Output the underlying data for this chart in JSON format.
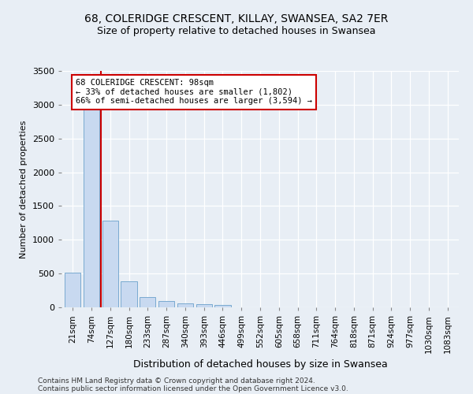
{
  "title1": "68, COLERIDGE CRESCENT, KILLAY, SWANSEA, SA2 7ER",
  "title2": "Size of property relative to detached houses in Swansea",
  "xlabel": "Distribution of detached houses by size in Swansea",
  "ylabel": "Number of detached properties",
  "categories": [
    "21sqm",
    "74sqm",
    "127sqm",
    "180sqm",
    "233sqm",
    "287sqm",
    "340sqm",
    "393sqm",
    "446sqm",
    "499sqm",
    "552sqm",
    "605sqm",
    "658sqm",
    "711sqm",
    "764sqm",
    "818sqm",
    "871sqm",
    "924sqm",
    "977sqm",
    "1030sqm",
    "1083sqm"
  ],
  "values": [
    510,
    3280,
    1280,
    390,
    155,
    90,
    60,
    45,
    35,
    0,
    0,
    0,
    0,
    0,
    0,
    0,
    0,
    0,
    0,
    0,
    0
  ],
  "bar_color": "#c8d9f0",
  "bar_edge_color": "#7aaad0",
  "property_line_color": "#cc0000",
  "annotation_text": "68 COLERIDGE CRESCENT: 98sqm\n← 33% of detached houses are smaller (1,802)\n66% of semi-detached houses are larger (3,594) →",
  "annotation_box_color": "#ffffff",
  "annotation_box_edge": "#cc0000",
  "ylim": [
    0,
    3500
  ],
  "yticks": [
    0,
    500,
    1000,
    1500,
    2000,
    2500,
    3000,
    3500
  ],
  "footer1": "Contains HM Land Registry data © Crown copyright and database right 2024.",
  "footer2": "Contains public sector information licensed under the Open Government Licence v3.0.",
  "background_color": "#e8eef5",
  "plot_background": "#e8eef5",
  "grid_color": "#ffffff",
  "title1_fontsize": 10,
  "title2_fontsize": 9
}
